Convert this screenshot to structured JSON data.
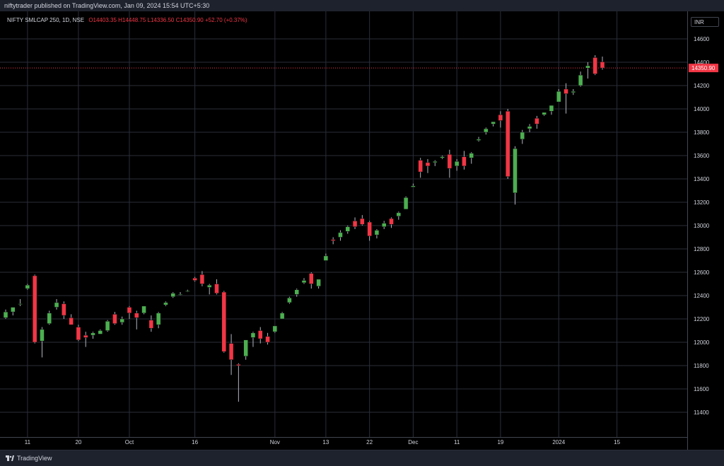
{
  "header": {
    "publisher_line": "niftytrader published on TradingView.com, Jan 09, 2024 15:54 UTC+5:30"
  },
  "legend": {
    "symbol": "NIFTY SMLCAP 250, 1D, NSE",
    "open": "O14403.35",
    "high": "H14448.75",
    "low": "L14336.50",
    "close": "C14350.90",
    "change": "+52.70 (+0.37%)"
  },
  "currency": "INR",
  "price_label": "14350.90",
  "footer": {
    "brand": "TradingView"
  },
  "colors": {
    "up": "#4caf50",
    "down": "#f23645",
    "background": "#000000",
    "grid": "#2a2e39",
    "axis_text": "#d1d4dc",
    "price_line": "#f23645"
  },
  "chart_data": {
    "type": "candlestick",
    "ylim": [
      11200,
      14800
    ],
    "y_ticks": [
      11400,
      11600,
      11800,
      12000,
      12200,
      12400,
      12600,
      12800,
      13000,
      13200,
      13400,
      13600,
      13800,
      14000,
      14200,
      14400,
      14600
    ],
    "x_ticks": [
      "11",
      "20",
      "Oct",
      "16",
      "Nov",
      "13",
      "22",
      "Dec",
      "11",
      "19",
      "2024",
      "15"
    ],
    "last_price": 14350.9,
    "candles": [
      {
        "o": 12210,
        "h": 12280,
        "l": 12200,
        "c": 12260
      },
      {
        "o": 12260,
        "h": 12300,
        "l": 12230,
        "c": 12300
      },
      {
        "o": 12330,
        "h": 12370,
        "l": 12310,
        "c": 12330
      },
      {
        "o": 12460,
        "h": 12500,
        "l": 12450,
        "c": 12490
      },
      {
        "o": 12570,
        "h": 12580,
        "l": 11990,
        "c": 12000
      },
      {
        "o": 12010,
        "h": 12130,
        "l": 11870,
        "c": 12110
      },
      {
        "o": 12160,
        "h": 12270,
        "l": 12150,
        "c": 12250
      },
      {
        "o": 12300,
        "h": 12370,
        "l": 12280,
        "c": 12340
      },
      {
        "o": 12330,
        "h": 12350,
        "l": 12200,
        "c": 12230
      },
      {
        "o": 12210,
        "h": 12240,
        "l": 12150,
        "c": 12150
      },
      {
        "o": 12130,
        "h": 12150,
        "l": 12010,
        "c": 12020
      },
      {
        "o": 12060,
        "h": 12090,
        "l": 11960,
        "c": 12040
      },
      {
        "o": 12060,
        "h": 12090,
        "l": 12030,
        "c": 12080
      },
      {
        "o": 12070,
        "h": 12110,
        "l": 12070,
        "c": 12100
      },
      {
        "o": 12100,
        "h": 12190,
        "l": 12090,
        "c": 12180
      },
      {
        "o": 12240,
        "h": 12260,
        "l": 12150,
        "c": 12160
      },
      {
        "o": 12170,
        "h": 12220,
        "l": 12150,
        "c": 12200
      },
      {
        "o": 12300,
        "h": 12310,
        "l": 12200,
        "c": 12250
      },
      {
        "o": 12250,
        "h": 12270,
        "l": 12110,
        "c": 12210
      },
      {
        "o": 12250,
        "h": 12310,
        "l": 12240,
        "c": 12310
      },
      {
        "o": 12190,
        "h": 12230,
        "l": 12090,
        "c": 12120
      },
      {
        "o": 12150,
        "h": 12260,
        "l": 12120,
        "c": 12250
      },
      {
        "o": 12320,
        "h": 12350,
        "l": 12310,
        "c": 12340
      },
      {
        "o": 12390,
        "h": 12430,
        "l": 12380,
        "c": 12420
      },
      {
        "o": 12410,
        "h": 12430,
        "l": 12400,
        "c": 12410
      },
      {
        "o": 12440,
        "h": 12450,
        "l": 12430,
        "c": 12440
      },
      {
        "o": 12550,
        "h": 12560,
        "l": 12520,
        "c": 12530
      },
      {
        "o": 12580,
        "h": 12610,
        "l": 12480,
        "c": 12500
      },
      {
        "o": 12470,
        "h": 12500,
        "l": 12410,
        "c": 12490
      },
      {
        "o": 12500,
        "h": 12540,
        "l": 12410,
        "c": 12420
      },
      {
        "o": 12430,
        "h": 12440,
        "l": 11910,
        "c": 11920
      },
      {
        "o": 11990,
        "h": 12070,
        "l": 11720,
        "c": 11850
      },
      {
        "o": 11810,
        "h": 11820,
        "l": 11490,
        "c": 11800
      },
      {
        "o": 11880,
        "h": 12020,
        "l": 11850,
        "c": 12020
      },
      {
        "o": 12040,
        "h": 12090,
        "l": 11960,
        "c": 12080
      },
      {
        "o": 12100,
        "h": 12130,
        "l": 11990,
        "c": 12030
      },
      {
        "o": 12050,
        "h": 12080,
        "l": 11980,
        "c": 12000
      },
      {
        "o": 12090,
        "h": 12140,
        "l": 12080,
        "c": 12140
      },
      {
        "o": 12200,
        "h": 12260,
        "l": 12200,
        "c": 12250
      },
      {
        "o": 12340,
        "h": 12390,
        "l": 12330,
        "c": 12380
      },
      {
        "o": 12410,
        "h": 12460,
        "l": 12390,
        "c": 12450
      },
      {
        "o": 12510,
        "h": 12550,
        "l": 12500,
        "c": 12530
      },
      {
        "o": 12590,
        "h": 12600,
        "l": 12460,
        "c": 12500
      },
      {
        "o": 12480,
        "h": 12540,
        "l": 12460,
        "c": 12540
      },
      {
        "o": 12700,
        "h": 12760,
        "l": 12700,
        "c": 12740
      },
      {
        "o": 12880,
        "h": 12900,
        "l": 12840,
        "c": 12870
      },
      {
        "o": 12900,
        "h": 12960,
        "l": 12870,
        "c": 12940
      },
      {
        "o": 12950,
        "h": 13000,
        "l": 12930,
        "c": 12990
      },
      {
        "o": 13040,
        "h": 13070,
        "l": 12970,
        "c": 12990
      },
      {
        "o": 13060,
        "h": 13090,
        "l": 13000,
        "c": 13010
      },
      {
        "o": 13030,
        "h": 13040,
        "l": 12870,
        "c": 12910
      },
      {
        "o": 12920,
        "h": 12970,
        "l": 12890,
        "c": 12960
      },
      {
        "o": 12990,
        "h": 13040,
        "l": 12970,
        "c": 13020
      },
      {
        "o": 13060,
        "h": 13070,
        "l": 12980,
        "c": 13010
      },
      {
        "o": 13080,
        "h": 13120,
        "l": 13050,
        "c": 13110
      },
      {
        "o": 13140,
        "h": 13250,
        "l": 13140,
        "c": 13240
      },
      {
        "o": 13330,
        "h": 13360,
        "l": 13330,
        "c": 13340
      },
      {
        "o": 13560,
        "h": 13580,
        "l": 13410,
        "c": 13460
      },
      {
        "o": 13540,
        "h": 13570,
        "l": 13450,
        "c": 13510
      },
      {
        "o": 13540,
        "h": 13560,
        "l": 13510,
        "c": 13550
      },
      {
        "o": 13580,
        "h": 13600,
        "l": 13570,
        "c": 13590
      },
      {
        "o": 13610,
        "h": 13650,
        "l": 13410,
        "c": 13490
      },
      {
        "o": 13510,
        "h": 13570,
        "l": 13470,
        "c": 13550
      },
      {
        "o": 13590,
        "h": 13640,
        "l": 13480,
        "c": 13510
      },
      {
        "o": 13580,
        "h": 13630,
        "l": 13530,
        "c": 13620
      },
      {
        "o": 13730,
        "h": 13760,
        "l": 13720,
        "c": 13740
      },
      {
        "o": 13800,
        "h": 13840,
        "l": 13780,
        "c": 13830
      },
      {
        "o": 13870,
        "h": 13890,
        "l": 13850,
        "c": 13890
      },
      {
        "o": 13950,
        "h": 13980,
        "l": 13840,
        "c": 13900
      },
      {
        "o": 13980,
        "h": 14000,
        "l": 13400,
        "c": 13420
      },
      {
        "o": 13280,
        "h": 13680,
        "l": 13180,
        "c": 13660
      },
      {
        "o": 13740,
        "h": 13820,
        "l": 13700,
        "c": 13800
      },
      {
        "o": 13830,
        "h": 13870,
        "l": 13800,
        "c": 13850
      },
      {
        "o": 13920,
        "h": 13940,
        "l": 13830,
        "c": 13870
      },
      {
        "o": 13950,
        "h": 13970,
        "l": 13940,
        "c": 13970
      },
      {
        "o": 13980,
        "h": 14030,
        "l": 13950,
        "c": 14030
      },
      {
        "o": 14060,
        "h": 14170,
        "l": 14060,
        "c": 14150
      },
      {
        "o": 14170,
        "h": 14220,
        "l": 13960,
        "c": 14130
      },
      {
        "o": 14140,
        "h": 14170,
        "l": 14120,
        "c": 14150
      },
      {
        "o": 14200,
        "h": 14320,
        "l": 14190,
        "c": 14290
      },
      {
        "o": 14350,
        "h": 14400,
        "l": 14260,
        "c": 14370
      },
      {
        "o": 14440,
        "h": 14460,
        "l": 14290,
        "c": 14300
      },
      {
        "o": 14403.35,
        "h": 14448.75,
        "l": 14336.5,
        "c": 14350.9
      }
    ]
  }
}
